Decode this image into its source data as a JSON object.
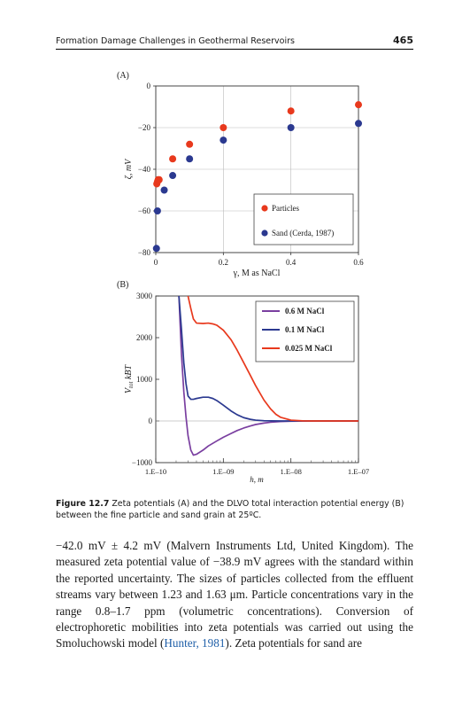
{
  "header": {
    "running_title": "Formation Damage Challenges in Geothermal Reservoirs",
    "page_number": "465"
  },
  "chart_data": [
    {
      "type": "scatter",
      "panel_label": "(A)",
      "xlabel": "γ, M as NaCl",
      "ylabel": "ζ, mV",
      "xlim": [
        0,
        0.6
      ],
      "ylim": [
        -80,
        0
      ],
      "xticks": [
        "0",
        "0.2",
        "0.4",
        "0.6"
      ],
      "yticks": [
        "0",
        "−20",
        "−40",
        "−60",
        "−80"
      ],
      "grid": true,
      "legend_position": "bottom-right",
      "series": [
        {
          "name": "Particles",
          "color": "#e8391d",
          "x": [
            0.003,
            0.005,
            0.007,
            0.01,
            0.05,
            0.1,
            0.2,
            0.4,
            0.6
          ],
          "y": [
            -47,
            -46,
            -45,
            -45,
            -35,
            -28,
            -20,
            -12,
            -9
          ]
        },
        {
          "name": "Sand (Cerda, 1987)",
          "color": "#2b3990",
          "x": [
            0.002,
            0.005,
            0.025,
            0.05,
            0.1,
            0.2,
            0.4,
            0.6
          ],
          "y": [
            -78,
            -60,
            -50,
            -43,
            -35,
            -26,
            -20,
            -18
          ]
        }
      ]
    },
    {
      "type": "line",
      "panel_label": "(B)",
      "xlabel": "h, m",
      "ylabel": "Vtot kBT",
      "ylabel_main": "V",
      "ylabel_sub": "tot",
      "ylabel_rest": " kBT",
      "xscale": "log",
      "xlim": [
        1e-10,
        1e-07
      ],
      "ylim": [
        -1000,
        3000
      ],
      "xticks": [
        "1.E–10",
        "1.E–09",
        "1.E–08",
        "1.E–07"
      ],
      "yticks": [
        "3000",
        "2000",
        "1000",
        "0",
        "−1000"
      ],
      "legend_position": "top-right",
      "series": [
        {
          "name": "0.6 M NaCl",
          "color": "#7a3fa0",
          "x": [
            2.2e-10,
            2.4e-10,
            2.6e-10,
            2.8e-10,
            3e-10,
            3.3e-10,
            3.6e-10,
            4e-10,
            5e-10,
            6e-10,
            8e-10,
            1e-09,
            1.3e-09,
            1.6e-09,
            2e-09,
            2.5e-09,
            3e-09,
            4e-09,
            5e-09,
            7e-09,
            1e-08,
            1.5e-08,
            2e-08,
            3e-08,
            5e-08,
            1e-07
          ],
          "y": [
            3000,
            1600,
            700,
            100,
            -350,
            -700,
            -820,
            -800,
            -700,
            -600,
            -480,
            -390,
            -300,
            -230,
            -170,
            -120,
            -85,
            -50,
            -30,
            -15,
            -7,
            -3,
            -2,
            -1,
            0,
            0
          ]
        },
        {
          "name": "0.1 M NaCl",
          "color": "#2b3990",
          "x": [
            2.2e-10,
            2.4e-10,
            2.6e-10,
            2.8e-10,
            3e-10,
            3.3e-10,
            3.6e-10,
            4e-10,
            5e-10,
            6e-10,
            7e-10,
            8e-10,
            1e-09,
            1.3e-09,
            1.6e-09,
            2e-09,
            2.5e-09,
            3e-09,
            4e-09,
            5e-09,
            7e-09,
            1e-08,
            1.5e-08,
            2e-08,
            5e-08,
            1e-07
          ],
          "y": [
            3000,
            2200,
            1400,
            900,
            600,
            520,
            520,
            540,
            570,
            570,
            540,
            490,
            380,
            240,
            150,
            80,
            40,
            20,
            6,
            2,
            0,
            0,
            0,
            0,
            0,
            0
          ]
        },
        {
          "name": "0.025 M NaCl",
          "color": "#e8391d",
          "x": [
            3e-10,
            3.3e-10,
            3.6e-10,
            4e-10,
            5e-10,
            6e-10,
            7e-10,
            8e-10,
            1e-09,
            1.3e-09,
            1.6e-09,
            2e-09,
            2.5e-09,
            3e-09,
            4e-09,
            5e-09,
            6e-09,
            7e-09,
            1e-08,
            1.5e-08,
            2e-08,
            5e-08,
            1e-07
          ],
          "y": [
            3000,
            2700,
            2450,
            2350,
            2340,
            2350,
            2330,
            2300,
            2180,
            1950,
            1700,
            1400,
            1100,
            850,
            500,
            290,
            160,
            90,
            20,
            2,
            0,
            0,
            0
          ]
        }
      ]
    }
  ],
  "caption": {
    "label": "Figure 12.7",
    "text": "Zeta potentials (A) and the DLVO total interaction potential energy (B) between the fine particle and sand grain at 25ºC."
  },
  "body": {
    "part1": "−42.0 mV ± 4.2 mV (Malvern Instruments Ltd, United Kingdom). The measured zeta potential value of −38.9 mV agrees with the standard within the reported uncertainty. The sizes of particles collected from the effluent streams vary between 1.23 and 1.63 μm. Particle concentrations vary in the range 0.8–1.7 ppm (volumetric concentrations). Conversion of electrophoretic mobilities into zeta potentials was carried out using the Smoluchowski model (",
    "citation": "Hunter, 1981",
    "part2": "). Zeta potentials for sand are"
  }
}
